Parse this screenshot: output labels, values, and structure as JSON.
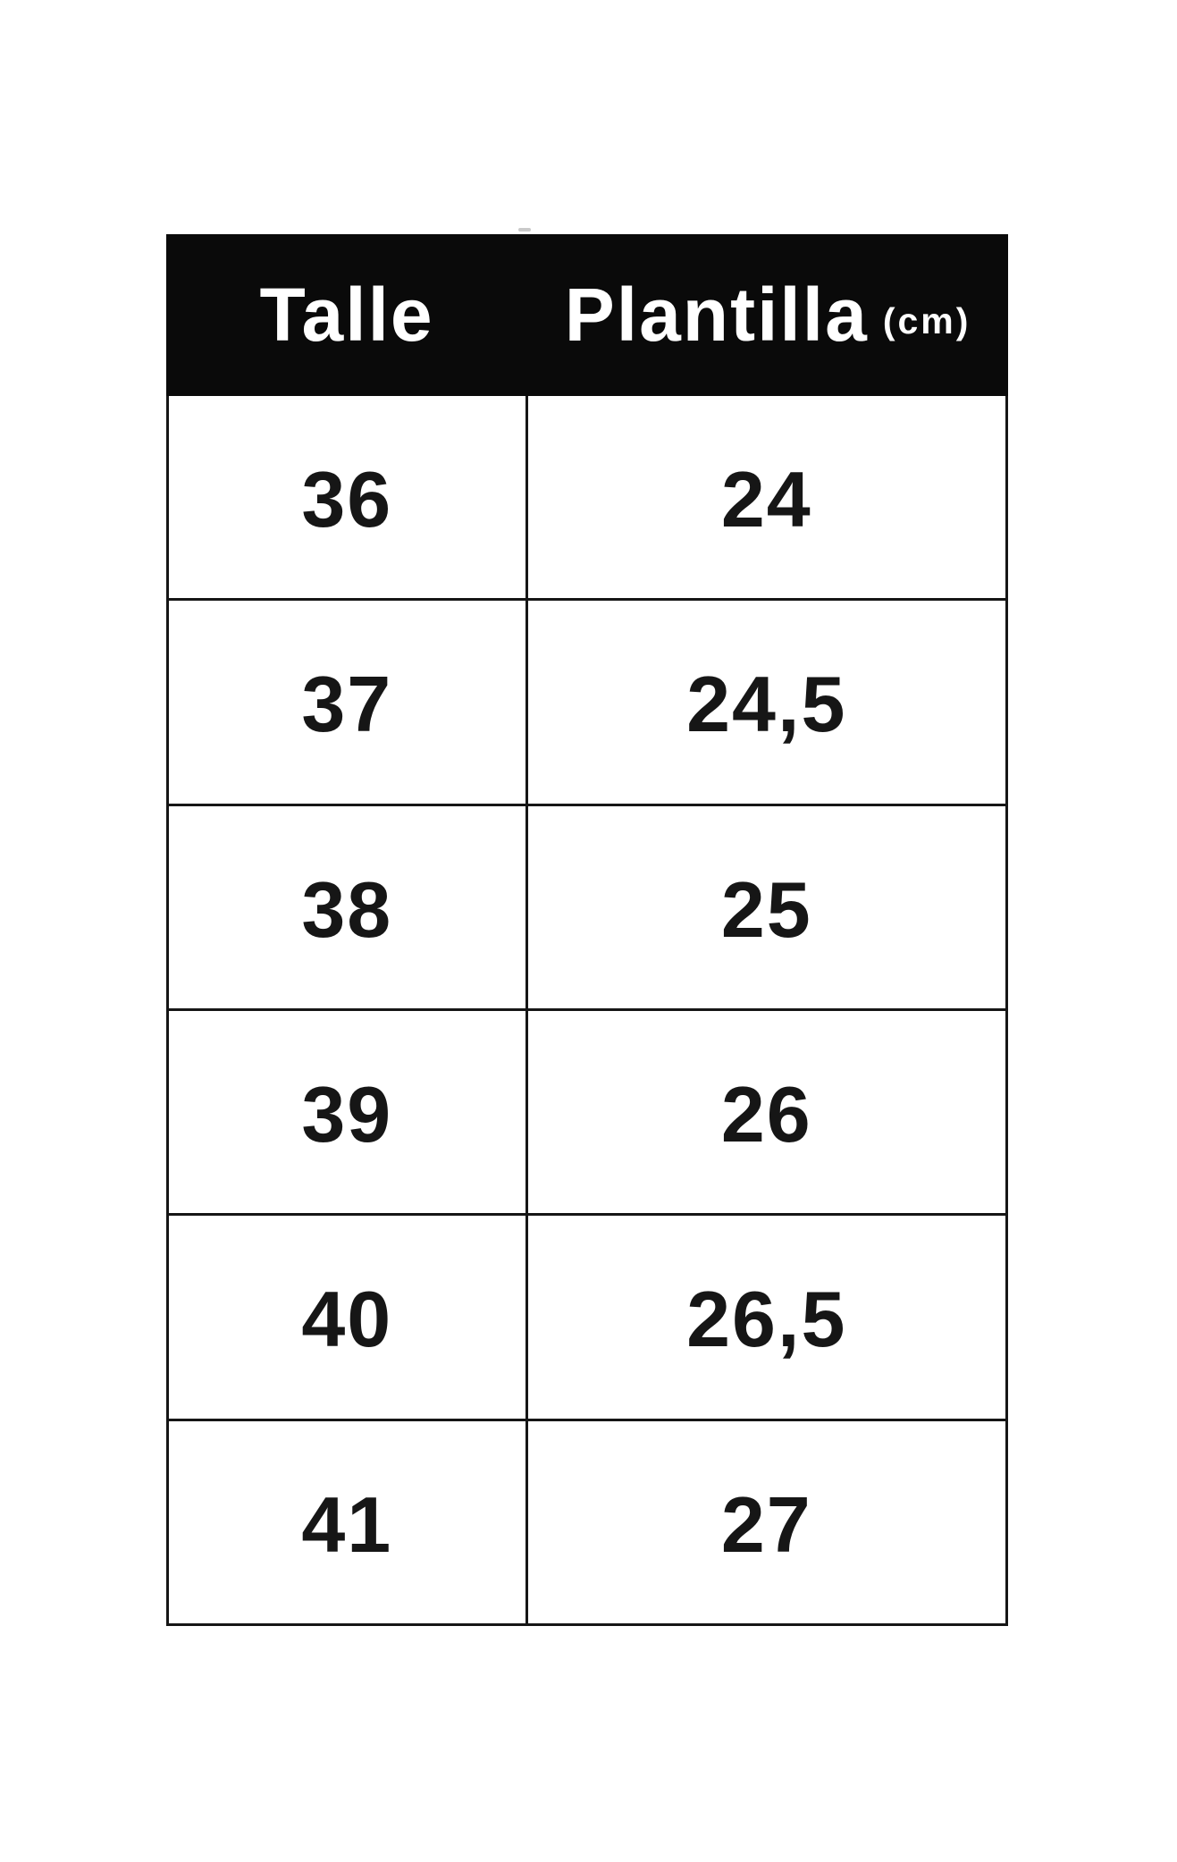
{
  "table": {
    "header": {
      "col1": "Talle",
      "col2": "Plantilla",
      "col2_unit": "(cm)"
    },
    "rows": [
      {
        "talle": "36",
        "plantilla": "24"
      },
      {
        "talle": "37",
        "plantilla": "24,5"
      },
      {
        "talle": "38",
        "plantilla": "25"
      },
      {
        "talle": "39",
        "plantilla": "26"
      },
      {
        "talle": "40",
        "plantilla": "26,5"
      },
      {
        "talle": "41",
        "plantilla": "27"
      }
    ],
    "colors": {
      "header_bg": "#0a0a0a",
      "header_text": "#ffffff",
      "cell_text": "#161616",
      "border": "#161616",
      "background": "#ffffff"
    }
  },
  "chart_data": {
    "type": "table",
    "title": "Talle / Plantilla (cm)",
    "columns": [
      "Talle",
      "Plantilla (cm)"
    ],
    "rows": [
      [
        "36",
        "24"
      ],
      [
        "37",
        "24,5"
      ],
      [
        "38",
        "25"
      ],
      [
        "39",
        "26"
      ],
      [
        "40",
        "26,5"
      ],
      [
        "41",
        "27"
      ]
    ],
    "sizes": [
      36,
      37,
      38,
      39,
      40,
      41
    ],
    "insole_cm": [
      24,
      24.5,
      25,
      26,
      26.5,
      27
    ],
    "layout_hints": {
      "header_style": "black band, white bold text",
      "grid": "thin black cell borders",
      "column_split_percent": [
        42.9,
        57.1
      ]
    }
  }
}
